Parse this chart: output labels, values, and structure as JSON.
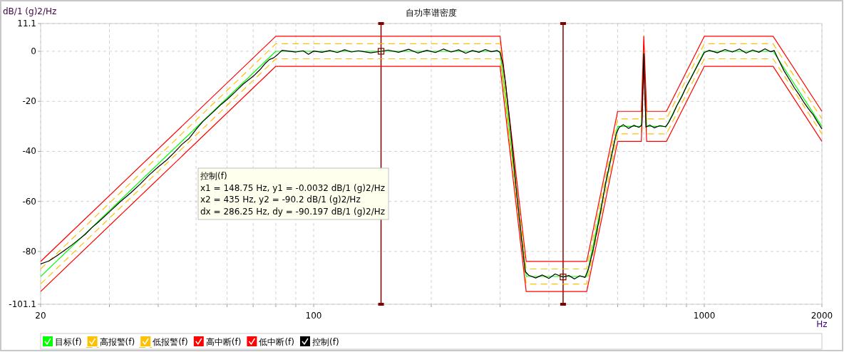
{
  "chart_data": {
    "type": "line",
    "title": "自功率谱密度",
    "xlabel": "Hz",
    "ylabel": "dB/1 (g)2/Hz",
    "log": "x",
    "grid": true,
    "legend": "bottom",
    "xlim": [
      20,
      2000
    ],
    "ylim": [
      -101.1,
      11.1
    ],
    "xticks": [
      20,
      {
        "value": 30,
        "label": null
      },
      {
        "value": 40,
        "label": null
      },
      {
        "value": 50,
        "label": null
      },
      {
        "value": 60,
        "label": null
      },
      {
        "value": 70,
        "label": null
      },
      {
        "value": 80,
        "label": null
      },
      {
        "value": 90,
        "label": null
      },
      100,
      {
        "value": 200,
        "label": null
      },
      {
        "value": 300,
        "label": null
      },
      {
        "value": 400,
        "label": null
      },
      {
        "value": 500,
        "label": null
      },
      {
        "value": 600,
        "label": null
      },
      {
        "value": 700,
        "label": null
      },
      {
        "value": 800,
        "label": null
      },
      {
        "value": 900,
        "label": null
      },
      1000,
      2000
    ],
    "yticks": [
      11.1,
      0,
      -20,
      -40,
      -60,
      -80,
      -101.1
    ],
    "series": [
      {
        "name": "目标(f)",
        "color": "#00ff00",
        "x": [
          20,
          80,
          300,
          350,
          500,
          600,
          690,
          700,
          712,
          800,
          1000,
          1500,
          2000
        ],
        "values": [
          -90,
          0,
          0,
          -90,
          -90,
          -30,
          -30,
          0,
          -30,
          -30,
          0,
          0,
          -30
        ]
      },
      {
        "name": "高报警(f)",
        "color": "#ffc000",
        "line_style": "dashed",
        "x": [
          20,
          80,
          300,
          350,
          500,
          600,
          690,
          700,
          712,
          800,
          1000,
          1500,
          2000
        ],
        "values": [
          -87,
          3,
          3,
          -87,
          -87,
          -27,
          -27,
          3,
          -27,
          -27,
          3,
          3,
          -27
        ]
      },
      {
        "name": "低报警(f)",
        "color": "#ffc000",
        "line_style": "dashed",
        "x": [
          20,
          80,
          300,
          350,
          500,
          600,
          690,
          700,
          712,
          800,
          1000,
          1500,
          2000
        ],
        "values": [
          -93,
          -3,
          -3,
          -93,
          -93,
          -33,
          -33,
          -3,
          -33,
          -33,
          -3,
          -3,
          -33
        ]
      },
      {
        "name": "高中断(f)",
        "color": "#ff0000",
        "x": [
          20,
          80,
          300,
          350,
          500,
          600,
          690,
          700,
          712,
          800,
          1000,
          1500,
          2000
        ],
        "values": [
          -84,
          6,
          6,
          -84,
          -84,
          -24,
          -24,
          6,
          -24,
          -24,
          6,
          6,
          -24
        ]
      },
      {
        "name": "低中断(f)",
        "color": "#ff0000",
        "x": [
          20,
          80,
          300,
          350,
          500,
          600,
          690,
          700,
          712,
          800,
          1000,
          1500,
          2000
        ],
        "values": [
          -96,
          -6,
          -6,
          -96,
          -96,
          -36,
          -36,
          -6,
          -36,
          -36,
          -6,
          -6,
          -36
        ]
      },
      {
        "name": "控制(f)",
        "color": "#000000",
        "x": [
          20,
          21,
          22,
          23,
          24,
          25,
          26,
          27,
          28,
          30,
          32,
          34,
          36,
          38,
          40,
          42,
          44,
          46,
          48,
          50,
          52,
          55,
          58,
          60,
          63,
          66,
          70,
          73,
          75,
          77,
          79,
          81,
          83,
          86,
          90,
          94,
          97,
          100,
          105,
          110,
          115,
          120,
          125,
          130,
          140,
          148.75,
          155,
          165,
          175,
          185,
          195,
          205,
          215,
          225,
          235,
          245,
          255,
          265,
          275,
          285,
          295,
          300,
          305,
          310,
          320,
          330,
          340,
          348,
          355,
          370,
          385,
          400,
          415,
          435,
          450,
          465,
          480,
          495,
          505,
          520,
          540,
          560,
          580,
          595,
          605,
          620,
          640,
          660,
          680,
          692,
          697,
          700,
          704,
          709,
          725,
          745,
          770,
          795,
          810,
          830,
          850,
          875,
          900,
          925,
          950,
          975,
          1000,
          1030,
          1080,
          1130,
          1180,
          1230,
          1280,
          1330,
          1380,
          1430,
          1480,
          1510,
          1550,
          1600,
          1650,
          1700,
          1750,
          1800,
          1850,
          1900,
          1950,
          2000
        ],
        "values": [
          -85,
          -83.8,
          -81.7,
          -79.6,
          -77.5,
          -75.3,
          -73.2,
          -70.6,
          -68.5,
          -64.2,
          -60.1,
          -56.6,
          -53.0,
          -49.3,
          -46.2,
          -43.5,
          -40.4,
          -37.2,
          -34.8,
          -31.2,
          -28.1,
          -24.6,
          -21.2,
          -19.3,
          -16.2,
          -13.1,
          -10.0,
          -7.2,
          -5.0,
          -3.3,
          -2.6,
          -1.2,
          0.4,
          0.1,
          -0.3,
          0.2,
          -1.2,
          0.1,
          -0.4,
          0.3,
          -0.5,
          0.6,
          -0.3,
          0.2,
          -0.6,
          0,
          0.5,
          -0.4,
          0.8,
          -0.7,
          0.4,
          -0.5,
          0.9,
          -0.3,
          0.6,
          -0.8,
          0.3,
          -0.4,
          0.7,
          -0.2,
          0.3,
          -0.5,
          -5,
          -13,
          -33,
          -55,
          -74,
          -88,
          -89.5,
          -90.6,
          -89.4,
          -90.8,
          -89.0,
          -90.2,
          -89.6,
          -91.0,
          -89.7,
          -90.4,
          -87,
          -79,
          -66,
          -52,
          -41,
          -33,
          -30.5,
          -29.3,
          -30.8,
          -29.6,
          -30.4,
          -29.5,
          -12,
          -1,
          -14,
          -30.3,
          -29.5,
          -30.6,
          -29.7,
          -30.2,
          -28.5,
          -25.4,
          -21.8,
          -18.2,
          -14.0,
          -10.6,
          -7.1,
          -3.8,
          -0.5,
          0.4,
          -0.6,
          0.7,
          -0.3,
          0.9,
          -0.7,
          0.5,
          -0.4,
          1.0,
          -0.2,
          0.3,
          -3.5,
          -7.8,
          -11.2,
          -14.6,
          -17.4,
          -20.5,
          -23.1,
          -25.4,
          -28.3,
          -31.0
        ]
      },
      {
        "type": "scatter",
        "marker": "square",
        "color": "#800000",
        "x": [
          148.75,
          435
        ],
        "values": [
          0,
          -90.2
        ]
      }
    ],
    "ref_lines": [
      {
        "axis": "x",
        "value": 148.75,
        "color": "#800000"
      },
      {
        "axis": "x",
        "value": 435,
        "color": "#800000"
      }
    ],
    "annotations": [
      "控制(f)",
      "x1 = 148.75 Hz, y1 = -0.0032 dB/1 (g)2/Hz",
      "x2 = 435 Hz, y2 = -90.2 dB/1 (g)2/Hz",
      "dx = 286.25 Hz, dy = -90.197 dB/1 (g)2/Hz"
    ]
  }
}
